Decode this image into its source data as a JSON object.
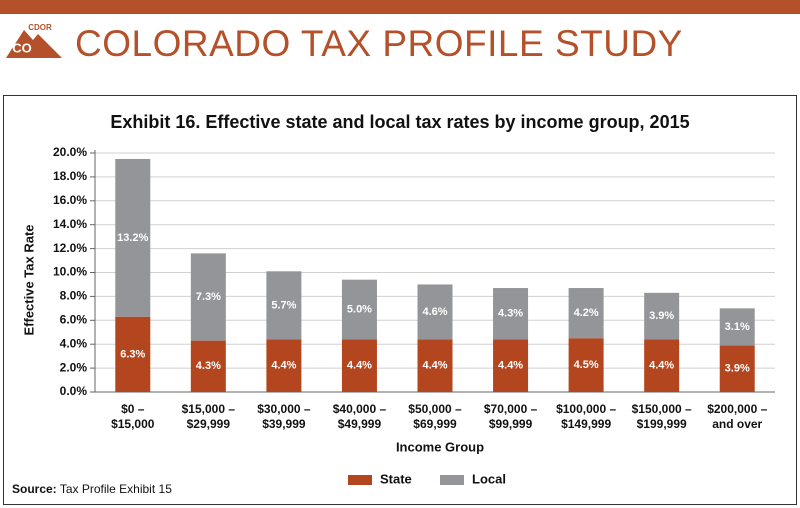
{
  "header": {
    "title": "COLORADO TAX PROFILE STUDY",
    "logo_top": "CDOR",
    "logo_main": "CO"
  },
  "chart_data": {
    "type": "bar",
    "stacked": true,
    "title": "Exhibit 16. Effective state and local tax rates by income group, 2015",
    "x_label": "Income Group",
    "y_label": "Effective Tax Rate",
    "categories": [
      [
        "$0 –",
        "$15,000"
      ],
      [
        "$15,000 –",
        "$29,999"
      ],
      [
        "$30,000 –",
        "$39,999"
      ],
      [
        "$40,000 –",
        "$49,999"
      ],
      [
        "$50,000 –",
        "$69,999"
      ],
      [
        "$70,000 –",
        "$99,999"
      ],
      [
        "$100,000 –",
        "$149,999"
      ],
      [
        "$150,000 –",
        "$199,999"
      ],
      [
        "$200,000 –",
        "and over"
      ]
    ],
    "series": [
      {
        "name": "State",
        "color": "#b4461f",
        "values": [
          6.3,
          4.3,
          4.4,
          4.4,
          4.4,
          4.4,
          4.5,
          4.4,
          3.9
        ],
        "value_labels": [
          "6.3%",
          "4.3%",
          "4.4%",
          "4.4%",
          "4.4%",
          "4.4%",
          "4.5%",
          "4.4%",
          "3.9%"
        ]
      },
      {
        "name": "Local",
        "color": "#939598",
        "values": [
          13.2,
          7.3,
          5.7,
          5.0,
          4.6,
          4.3,
          4.2,
          3.9,
          3.1
        ],
        "value_labels": [
          "13.2%",
          "7.3%",
          "5.7%",
          "5.0%",
          "4.6%",
          "4.3%",
          "4.2%",
          "3.9%",
          "3.1%"
        ]
      }
    ],
    "ylim": [
      0,
      20
    ],
    "yticks": [
      {
        "value": 0,
        "label": "0.0%"
      },
      {
        "value": 2,
        "label": "2.0%"
      },
      {
        "value": 4,
        "label": "4.0%"
      },
      {
        "value": 6,
        "label": "6.0%"
      },
      {
        "value": 8,
        "label": "8.0%"
      },
      {
        "value": 10,
        "label": "10.0%"
      },
      {
        "value": 12,
        "label": "12.0%"
      },
      {
        "value": 14,
        "label": "14.0%"
      },
      {
        "value": 16,
        "label": "16.0%"
      },
      {
        "value": 18,
        "label": "18.0%"
      },
      {
        "value": 20,
        "label": "20.0%"
      }
    ],
    "grid": true,
    "legend": "bottom",
    "source": {
      "label": "Source:",
      "text": "Tax Profile Exhibit 15"
    }
  }
}
